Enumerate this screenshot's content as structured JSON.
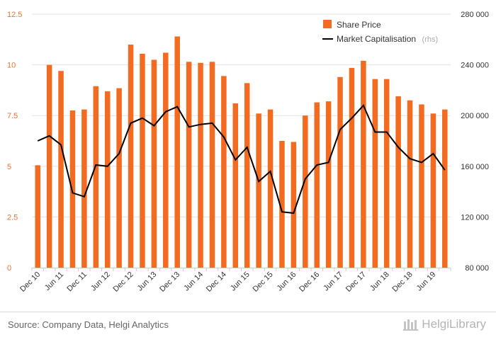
{
  "chart_data": {
    "type": "bar",
    "categories": [
      "Dec 10",
      "Mar 11",
      "Jun 11",
      "Sep 11",
      "Dec 11",
      "Mar 12",
      "Jun 12",
      "Sep 12",
      "Dec 12",
      "Mar 13",
      "Jun 13",
      "Sep 13",
      "Dec 13",
      "Mar 14",
      "Jun 14",
      "Sep 14",
      "Dec 14",
      "Mar 15",
      "Jun 15",
      "Sep 15",
      "Dec 15",
      "Mar 16",
      "Jun 16",
      "Sep 16",
      "Dec 16",
      "Mar 17",
      "Jun 17",
      "Sep 17",
      "Dec 17",
      "Mar 18",
      "Jun 18",
      "Sep 18",
      "Dec 18",
      "Mar 19",
      "Jun 19",
      "Sep 19"
    ],
    "x_tick_labels": [
      "Dec 10",
      "Jun 11",
      "Dec 11",
      "Jun 12",
      "Dec 12",
      "Jun 13",
      "Dec 13",
      "Jun 14",
      "Dec 14",
      "Jun 15",
      "Dec 15",
      "Jun 16",
      "Dec 16",
      "Jun 17",
      "Dec 17",
      "Jun 18",
      "Dec 18",
      "Jun 19"
    ],
    "series": [
      {
        "name": "Share Price",
        "type": "bar",
        "axis": "left",
        "color": "#f26b21",
        "values": [
          5.05,
          10.0,
          9.7,
          7.75,
          7.8,
          8.95,
          8.7,
          8.85,
          11.0,
          10.55,
          10.25,
          10.6,
          11.4,
          10.15,
          10.1,
          10.15,
          9.45,
          8.1,
          9.1,
          7.6,
          7.8,
          6.25,
          6.2,
          7.5,
          8.15,
          8.2,
          9.4,
          9.85,
          10.2,
          9.3,
          9.3,
          8.45,
          8.25,
          8.05,
          7.6,
          7.8
        ]
      },
      {
        "name": "Market Capitalisation",
        "name_note": "(rhs)",
        "type": "line",
        "axis": "right",
        "color": "#000000",
        "values": [
          180000,
          184000,
          177000,
          139000,
          136000,
          161000,
          160000,
          170000,
          194000,
          198000,
          192000,
          203000,
          207000,
          191000,
          193000,
          194000,
          183000,
          165000,
          175000,
          148000,
          156000,
          124000,
          123000,
          150000,
          161000,
          163000,
          189000,
          198000,
          208000,
          187000,
          187000,
          175000,
          166000,
          163000,
          170000,
          157000
        ]
      }
    ],
    "y_left": {
      "min": 0,
      "max": 12.5,
      "ticks": [
        "0",
        "2.5",
        "5",
        "7.5",
        "10",
        "12.5"
      ],
      "tick_values": [
        0,
        2.5,
        5,
        7.5,
        10,
        12.5
      ]
    },
    "y_right": {
      "min": 80000,
      "max": 280000,
      "ticks": [
        "80 000",
        "120 000",
        "160 000",
        "200 000",
        "240 000",
        "280 000"
      ],
      "tick_values": [
        80000,
        120000,
        160000,
        200000,
        240000,
        280000
      ]
    },
    "grid": true,
    "legend_position": "top-right"
  },
  "footer": {
    "source": "Source: Company Data, Helgi Analytics",
    "brand": "HelgiLibrary"
  }
}
